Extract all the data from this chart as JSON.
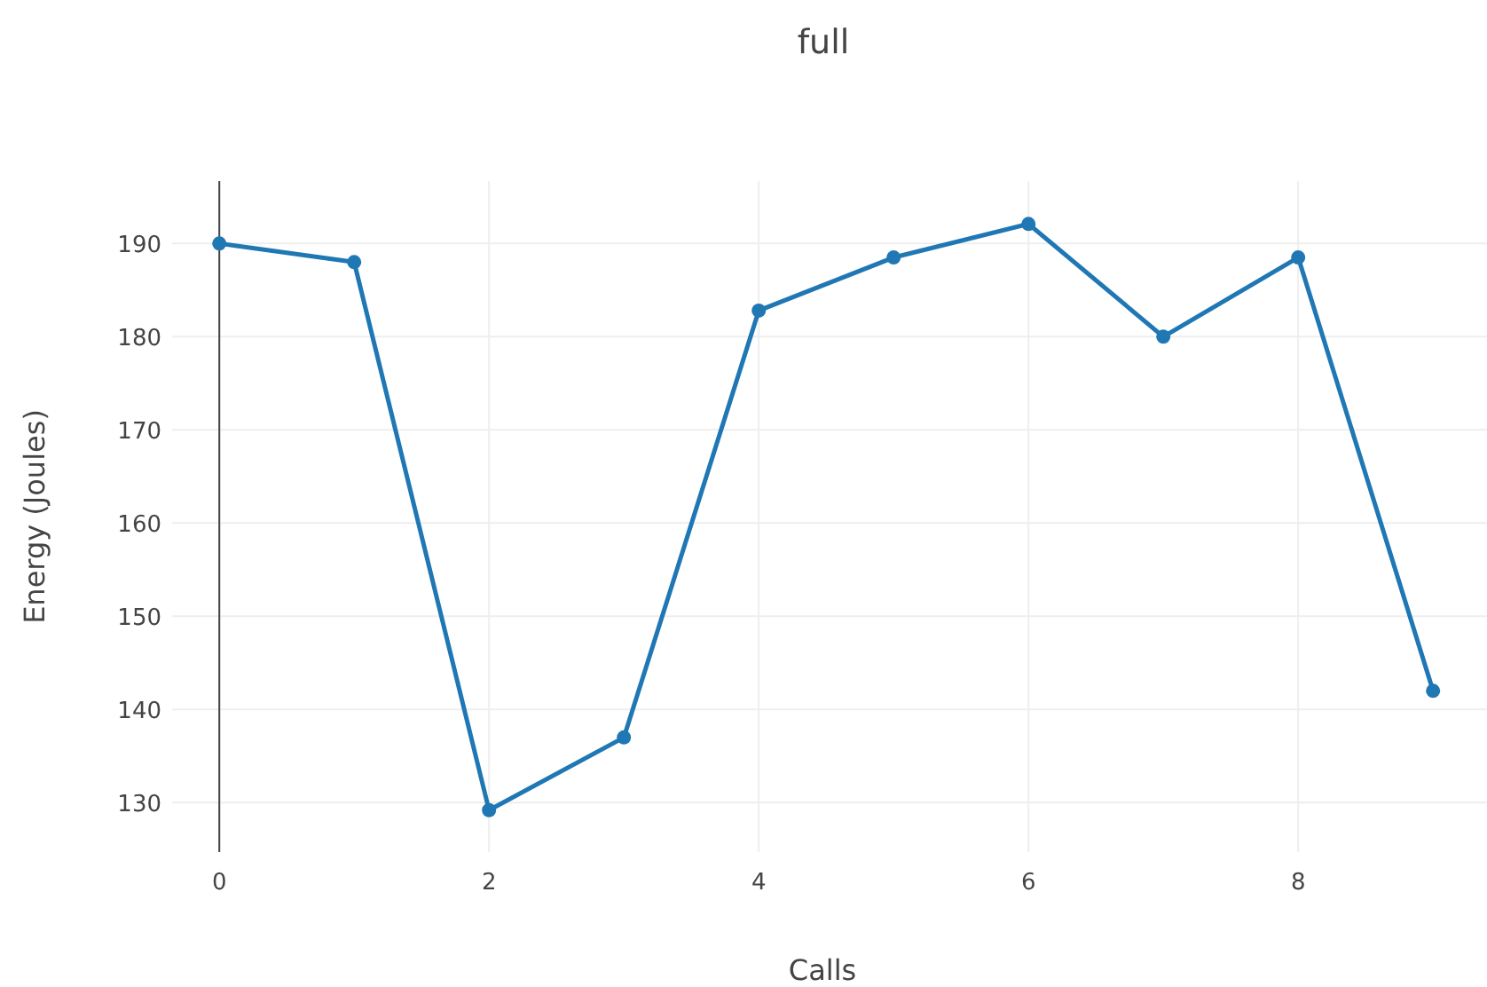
{
  "chart_data": {
    "type": "line",
    "title": "full",
    "xlabel": "Calls",
    "ylabel": "Energy (Joules)",
    "x": [
      0,
      1,
      2,
      3,
      4,
      5,
      6,
      7,
      8,
      9
    ],
    "series": [
      {
        "color": "#1f77b4",
        "values": [
          190,
          188,
          129.2,
          137,
          182.8,
          188.5,
          192.1,
          180,
          188.5,
          142
        ]
      }
    ],
    "xlim": [
      -0.35,
      9.4
    ],
    "xticks": [
      0,
      2,
      4,
      6,
      8
    ],
    "ylim": [
      124.7,
      196.7
    ],
    "yticks": [
      130,
      140,
      150,
      160,
      170,
      180,
      190
    ],
    "grid": true,
    "marker": "circle",
    "line_style": "solid"
  }
}
